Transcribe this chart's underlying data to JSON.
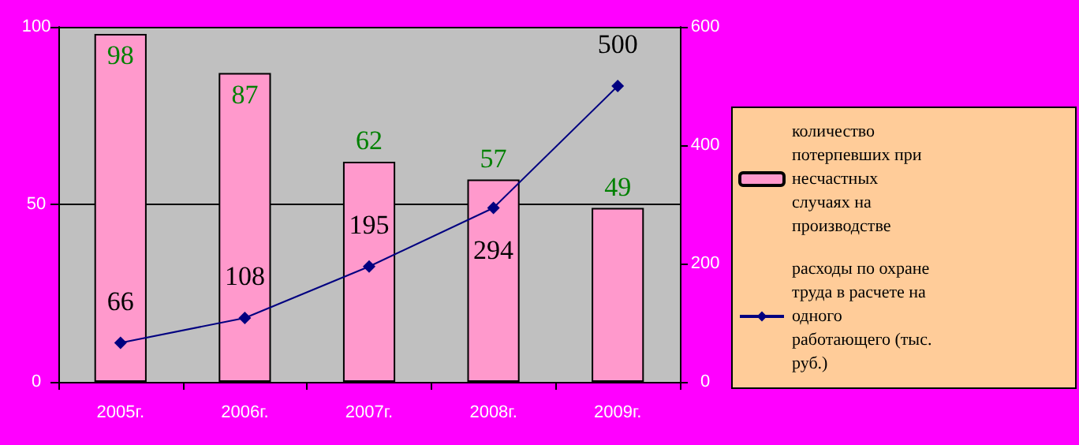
{
  "chart_data": {
    "type": "bar",
    "categories": [
      "2005г.",
      "2006г.",
      "2007г.",
      "2008г.",
      "2009г."
    ],
    "series": [
      {
        "name": "количество потерпевших при несчастных случаях на производстве",
        "color": "#ff99cc",
        "values": [
          98,
          87,
          62,
          57,
          49
        ]
      },
      {
        "name": "расходы по охране труда в расчете на одного работающего (тыс. руб.)",
        "type": "line",
        "axis": "y2",
        "color": "#000080",
        "values": [
          66,
          108,
          195,
          294,
          500
        ]
      }
    ],
    "ylim": [
      0,
      100
    ],
    "yticks": [
      0,
      50,
      100
    ],
    "y2lim": [
      0,
      600
    ],
    "y2ticks": [
      0,
      200,
      400,
      600
    ],
    "grid": "y",
    "legend": "right",
    "marker": "diamond",
    "line_style": "solid",
    "data_labels": true
  }
}
